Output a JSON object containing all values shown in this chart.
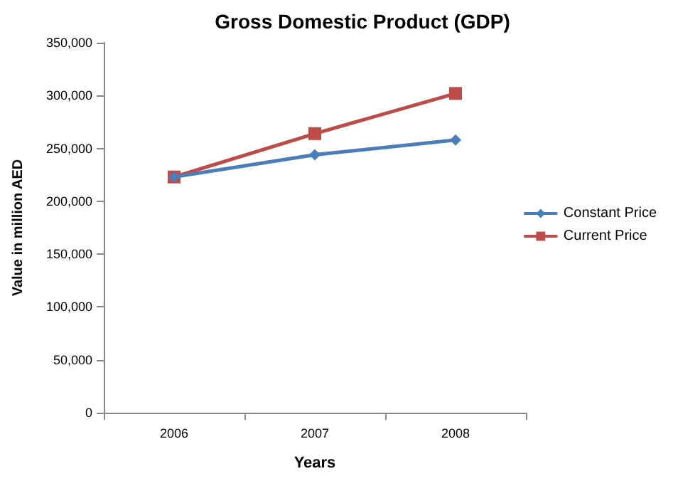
{
  "chart_data": {
    "type": "line",
    "title": "Gross Domestic Product (GDP)",
    "xlabel": "Years",
    "ylabel": "Value in million AED",
    "categories": [
      "2006",
      "2007",
      "2008"
    ],
    "series": [
      {
        "name": "Constant Price",
        "color": "#4a7ebb",
        "marker": "diamond",
        "values": [
          223000,
          244000,
          258000
        ]
      },
      {
        "name": "Current Price",
        "color": "#be4b48",
        "marker": "square",
        "values": [
          223000,
          264000,
          302000
        ]
      }
    ],
    "ylim": [
      0,
      350000
    ],
    "yticks": [
      {
        "value": 0,
        "label": "0"
      },
      {
        "value": 50000,
        "label": "50,000"
      },
      {
        "value": 100000,
        "label": "100,000"
      },
      {
        "value": 150000,
        "label": "150,000"
      },
      {
        "value": 200000,
        "label": "200,000"
      },
      {
        "value": 250000,
        "label": "250,000"
      },
      {
        "value": 300000,
        "label": "300,000"
      },
      {
        "value": 350000,
        "label": "350,000"
      }
    ],
    "grid": false,
    "legend": "right",
    "line_style": "solid"
  }
}
